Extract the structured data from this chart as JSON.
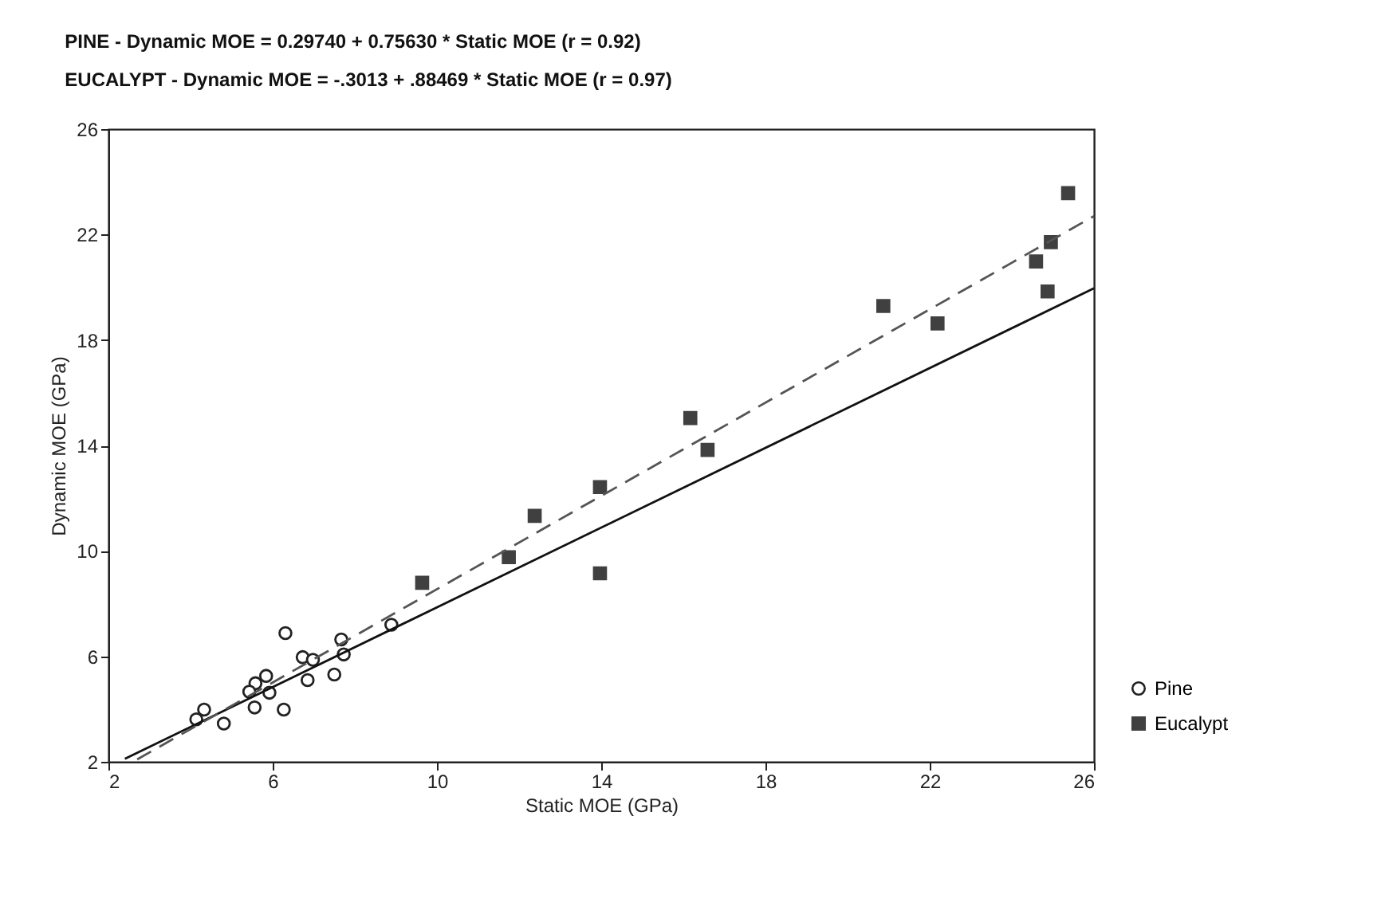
{
  "chart_data": {
    "type": "scatter",
    "title": "PINE - Dynamic MOE = 0.29740 + 0.75630 * Static MOE  (r = 0.92)",
    "subtitle": "EUCALYPT - Dynamic MOE = -.3013 + .88469 * Static MOE  (r = 0.97)",
    "xlabel": "Static MOE (GPa)",
    "ylabel": "Dynamic MOE (GPa)",
    "xlim": [
      2,
      26
    ],
    "ylim": [
      2,
      26
    ],
    "xticks": [
      2,
      6,
      10,
      14,
      18,
      22,
      26
    ],
    "yticks": [
      2,
      6,
      10,
      14,
      18,
      22,
      26
    ],
    "legend": "bottom right",
    "series": [
      {
        "name": "Pine",
        "marker": "circle",
        "color": "#222222",
        "x": [
          6.31,
          7.67,
          6.73,
          6.98,
          7.73,
          7.5,
          6.85,
          8.89,
          5.84,
          5.58,
          5.92,
          5.56,
          6.27,
          5.43,
          4.81,
          4.33,
          4.14
        ],
        "values": [
          6.88,
          6.64,
          5.97,
          5.87,
          6.07,
          5.31,
          5.1,
          7.2,
          5.26,
          4.98,
          4.62,
          4.06,
          3.98,
          4.66,
          3.45,
          3.98,
          3.61
        ]
      },
      {
        "name": "Eucalypt",
        "marker": "square",
        "color": "#404040",
        "x": [
          25.37,
          24.95,
          24.59,
          24.87,
          20.87,
          22.19,
          16.17,
          16.59,
          13.97,
          12.38,
          11.75,
          13.97,
          9.64
        ],
        "values": [
          23.57,
          21.71,
          20.98,
          19.84,
          19.29,
          18.63,
          15.04,
          13.83,
          12.42,
          11.33,
          9.76,
          9.15,
          8.79
        ]
      },
      {
        "type": "line",
        "line_style": "solid",
        "color": "#111111",
        "x": [
          2.4,
          26
        ],
        "values": [
          2.11,
          19.96
        ]
      },
      {
        "type": "line",
        "line_style": "dashed",
        "color": "#555555",
        "x": [
          2.7,
          26
        ],
        "values": [
          2.09,
          22.7
        ]
      }
    ]
  }
}
